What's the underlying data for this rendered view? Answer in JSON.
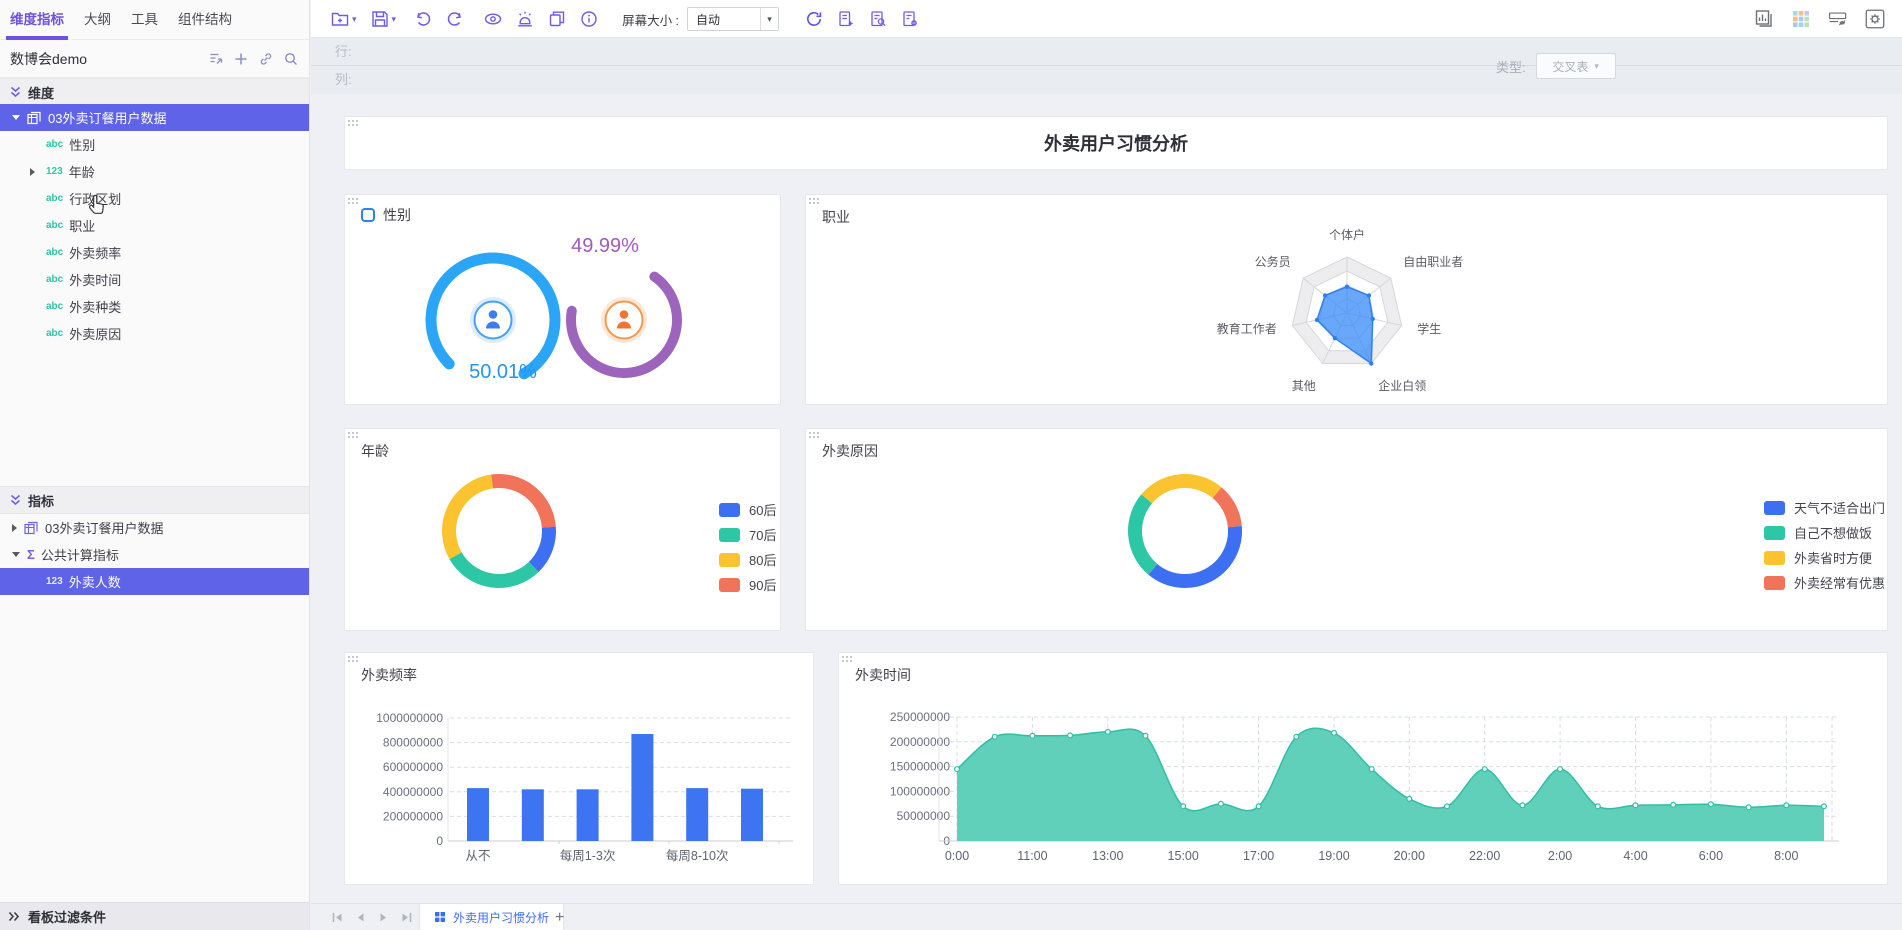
{
  "colors": {
    "accent_purple": "#6C5CE8",
    "selection_purple": "#5E63E8",
    "field_teal": "#2EC7A6",
    "bar_blue": "#3D74F1",
    "area_teal": "#57CEB7",
    "area_line": "#2FBFA3",
    "gauge_blue": "#2BA6F6",
    "gauge_purple": "#9D64BB"
  },
  "sidebar": {
    "tabs": [
      {
        "label": "维度指标",
        "active": true
      },
      {
        "label": "大纲",
        "active": false
      },
      {
        "label": "工具",
        "active": false
      },
      {
        "label": "组件结构",
        "active": false
      }
    ],
    "workspace_title": "数博会demo",
    "header_icons": [
      "publish-icon",
      "add-icon",
      "link-icon",
      "search-icon"
    ],
    "dimension_section": "维度",
    "dimension_root": "03外卖订餐用户数据",
    "dimension_fields": [
      {
        "type": "abc",
        "label": "性别"
      },
      {
        "type": "123",
        "label": "年龄",
        "expandable": true
      },
      {
        "type": "abc",
        "label": "行政区划",
        "hovered": true
      },
      {
        "type": "abc",
        "label": "职业"
      },
      {
        "type": "abc",
        "label": "外卖频率"
      },
      {
        "type": "abc",
        "label": "外卖时间"
      },
      {
        "type": "abc",
        "label": "外卖种类"
      },
      {
        "type": "abc",
        "label": "外卖原因"
      }
    ],
    "metric_section": "指标",
    "metric_items": [
      {
        "icon": "table-icon",
        "label": "03外卖订餐用户数据",
        "caret": "collapsed",
        "selected": false
      },
      {
        "icon": "sigma-icon",
        "label": "公共计算指标",
        "caret": "expanded",
        "selected": false
      },
      {
        "icon": "123",
        "label": "外卖人数",
        "caret": "none",
        "selected": true
      }
    ],
    "filter_bar": "看板过滤条件"
  },
  "toolbar": {
    "left_icons": [
      "new-folder-icon",
      "save-icon",
      "undo-icon",
      "redo-icon",
      "preview-icon",
      "alert-icon",
      "copy-icon",
      "info-icon"
    ],
    "screen_size_label": "屏幕大小 :",
    "screen_size_value": "自动",
    "right_icons": [
      "refresh-icon",
      "doc-add-icon",
      "doc-search-icon",
      "doc-settings-icon"
    ],
    "far_right_icons": [
      "chart-gallery-icon",
      "widget-grid-icon",
      "hidden-widgets-icon",
      "settings-icon"
    ]
  },
  "shelf": {
    "row_label": "行:",
    "col_label": "列:",
    "type_label": "类型:",
    "type_value": "交叉表"
  },
  "dashboard": {
    "title": "外卖用户习惯分析"
  },
  "footer": {
    "tab_label": "外卖用户习惯分析"
  },
  "chart_data": [
    {
      "id": "gender",
      "type": "gauge",
      "title": "性别",
      "series": [
        {
          "name": "男",
          "pct": 50.01,
          "value_label": "50.01%",
          "color": "#2BA6F6"
        },
        {
          "name": "女",
          "pct": 49.99,
          "value_label": "49.99%",
          "color": "#9D64BB"
        }
      ]
    },
    {
      "id": "occupation",
      "type": "radar",
      "title": "职业",
      "categories": [
        "个体户",
        "自由职业者",
        "学生",
        "企业白领",
        "其他",
        "教育工作者",
        "公务员"
      ],
      "values": [
        0.47,
        0.5,
        0.47,
        1.0,
        0.5,
        0.55,
        0.5
      ],
      "max": 1
    },
    {
      "id": "age",
      "type": "donut",
      "title": "年龄",
      "start_deg": -98,
      "segments": [
        {
          "label": "90后",
          "color": "#F0735A",
          "pct": 26
        },
        {
          "label": "60后",
          "color": "#3D6FF2",
          "pct": 14
        },
        {
          "label": "70后",
          "color": "#2EC7A6",
          "pct": 29
        },
        {
          "label": "80后",
          "color": "#FBC330",
          "pct": 31
        }
      ],
      "legend": [
        "60后",
        "70后",
        "80后",
        "90后"
      ],
      "legend_colors": [
        "#3D6FF2",
        "#2EC7A6",
        "#FBC330",
        "#F0735A"
      ]
    },
    {
      "id": "reason",
      "type": "donut",
      "title": "外卖原因",
      "start_deg": -140,
      "segments": [
        {
          "label": "外卖省时方便",
          "color": "#FBC330",
          "pct": 25
        },
        {
          "label": "外卖经常有优惠",
          "color": "#F0735A",
          "pct": 12.5
        },
        {
          "label": "天气不适合出门",
          "color": "#3D6FF2",
          "pct": 37.5
        },
        {
          "label": "自己不想做饭",
          "color": "#2EC7A6",
          "pct": 25
        }
      ],
      "legend": [
        "天气不适合出门",
        "自己不想做饭",
        "外卖省时方便",
        "外卖经常有优惠"
      ],
      "legend_colors": [
        "#3D6FF2",
        "#2EC7A6",
        "#FBC330",
        "#F0735A"
      ]
    },
    {
      "id": "frequency",
      "type": "bar",
      "title": "外卖频率",
      "values": [
        430000000,
        420000000,
        420000000,
        870000000,
        430000000,
        425000000
      ],
      "x_tick_labels": [
        {
          "index": 0,
          "label": "从不"
        },
        {
          "index": 2,
          "label": "每周1-3次"
        },
        {
          "index": 4,
          "label": "每周8-10次"
        }
      ],
      "y_ticks": [
        "1000000000",
        "800000000",
        "600000000",
        "400000000",
        "200000000",
        "0"
      ],
      "ylim": [
        0,
        1000000000
      ],
      "bar_color": "#3D74F1"
    },
    {
      "id": "time",
      "type": "area",
      "title": "外卖时间",
      "values_millions": [
        145,
        210,
        212,
        213,
        220,
        212,
        70,
        75,
        70,
        210,
        218,
        145,
        85,
        70,
        145,
        72,
        145,
        70,
        72,
        73,
        74,
        68,
        72,
        70
      ],
      "tick_indices": [
        0,
        2,
        4,
        6,
        8,
        10,
        12,
        14,
        16,
        18,
        20,
        22
      ],
      "tick_labels": [
        "0:00",
        "11:00",
        "13:00",
        "15:00",
        "17:00",
        "19:00",
        "20:00",
        "22:00",
        "2:00",
        "4:00",
        "6:00",
        "8:00"
      ],
      "y_ticks": [
        "250000000",
        "200000000",
        "150000000",
        "100000000",
        "50000000",
        "0"
      ],
      "ylim": [
        0,
        250000000
      ],
      "area_color": "#57CEB7",
      "line_color": "#2FBFA3"
    }
  ]
}
